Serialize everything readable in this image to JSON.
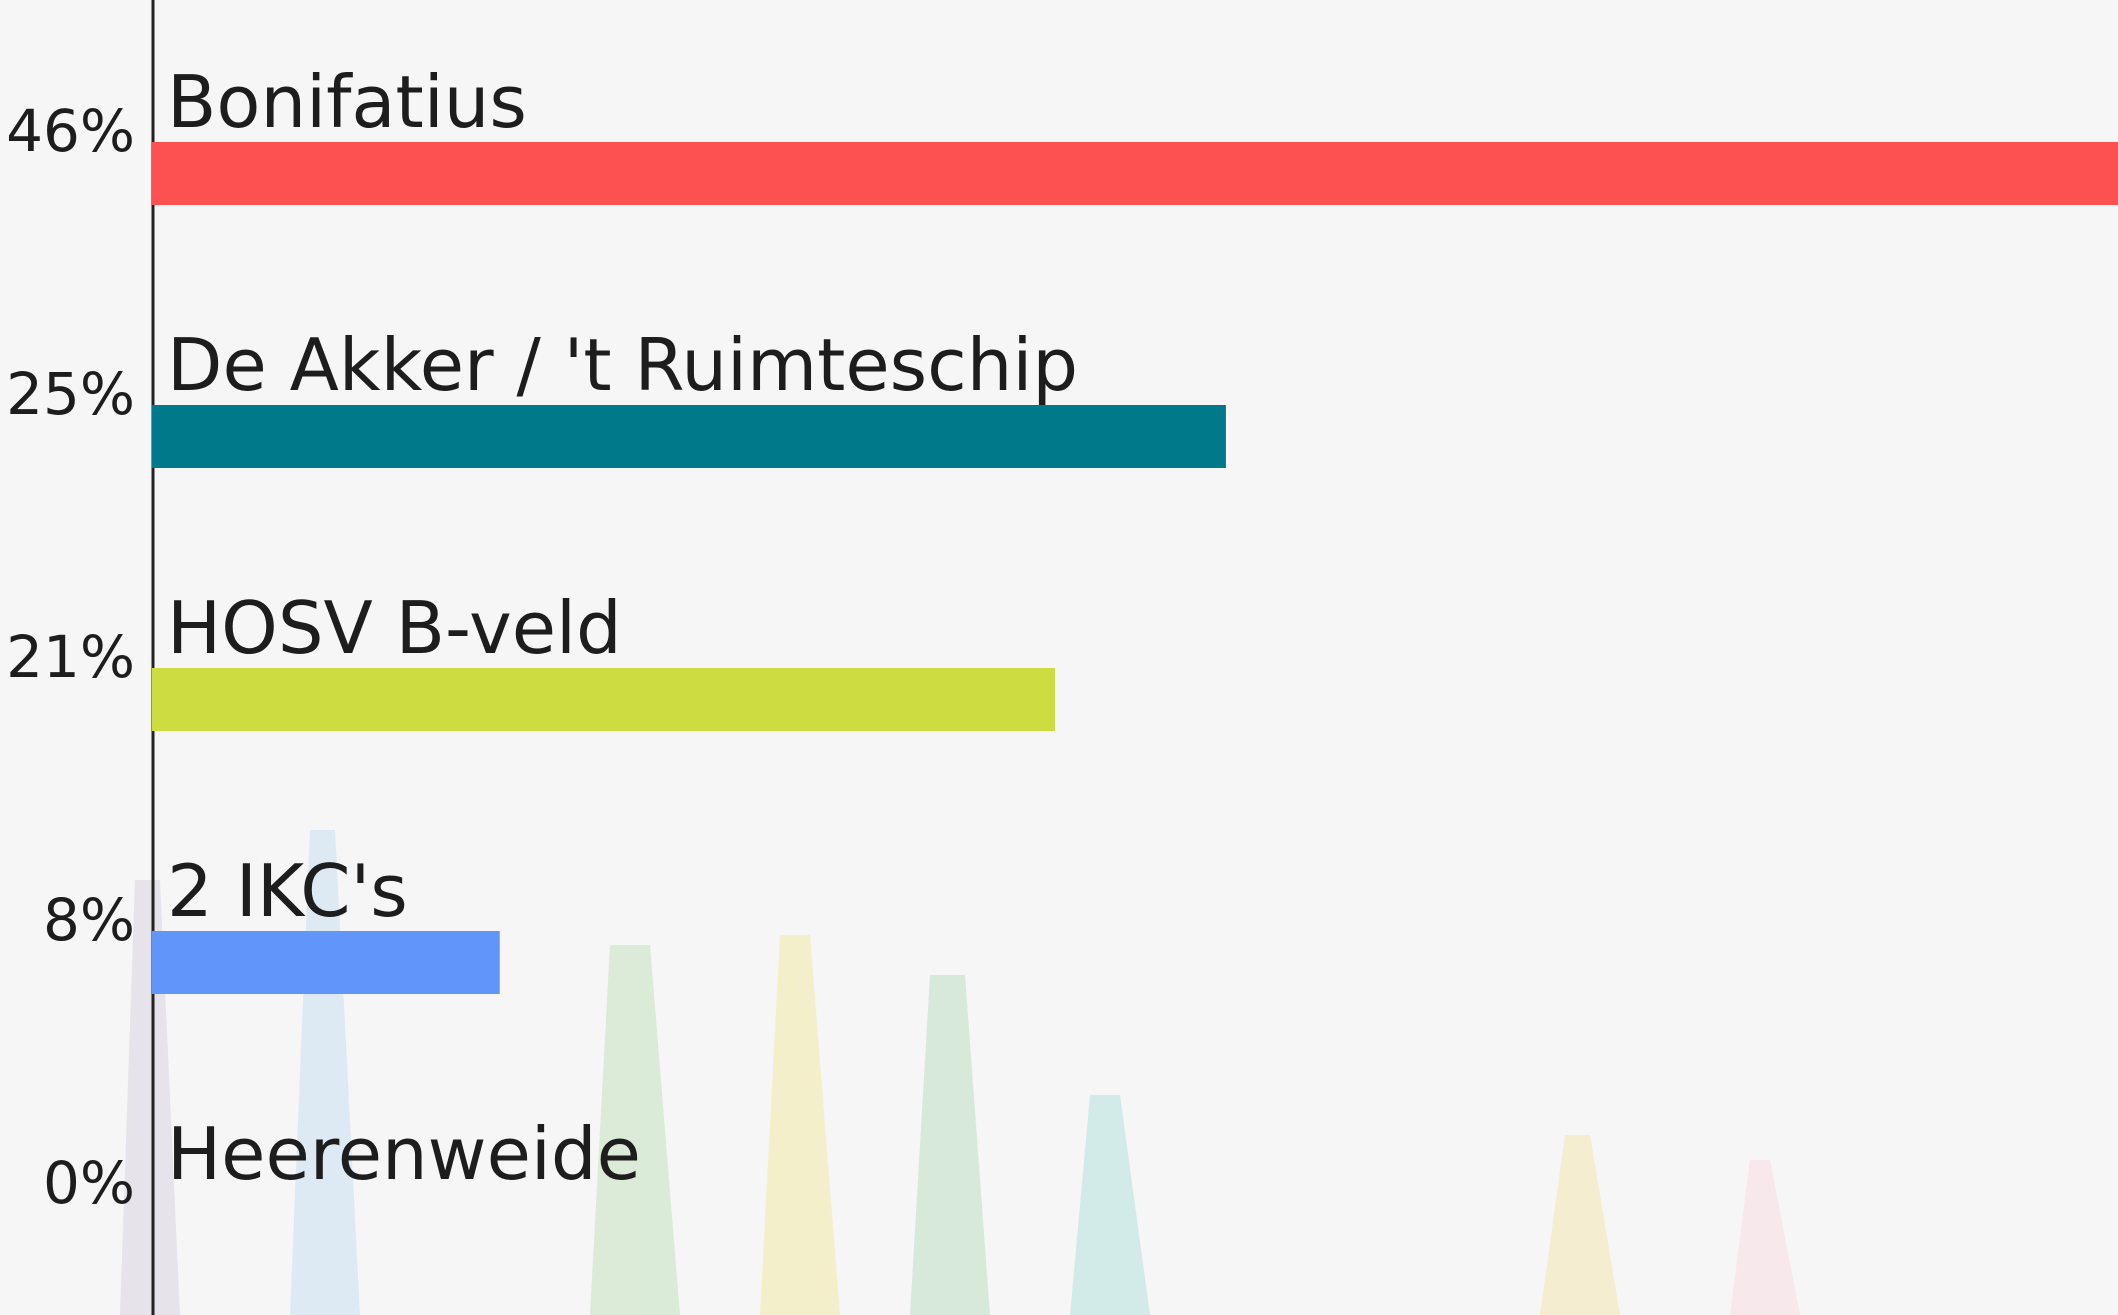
{
  "chart_data": {
    "type": "bar",
    "orientation": "horizontal",
    "categories": [
      "Bonifatius",
      "De Akker / 't Ruimteschip",
      "HOSV B-veld",
      "2 IKC's",
      "Heerenweide"
    ],
    "values": [
      46,
      25,
      21,
      8,
      0
    ],
    "value_labels": [
      "46%",
      "25%",
      "21%",
      "8%",
      "0%"
    ],
    "colors": [
      "#fd5050",
      "#007a8a",
      "#cddc40",
      "#6196f8",
      "#3ad0f0"
    ]
  }
}
